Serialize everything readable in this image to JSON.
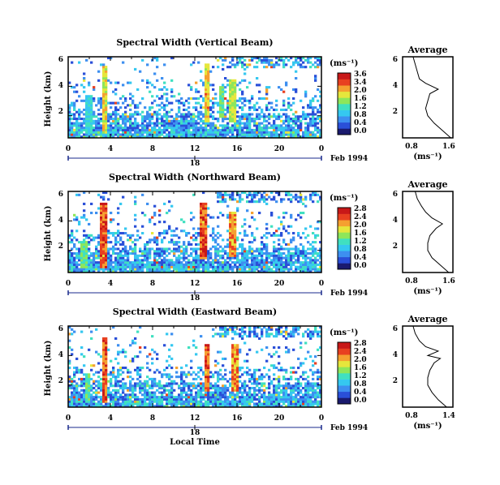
{
  "panels": [
    {
      "title": "Spectral Width (Vertical Beam)",
      "ylabel": "Height (km)",
      "yticks": [
        "6",
        "4",
        "2"
      ],
      "xticks": [
        "0",
        "4",
        "8",
        "12",
        "16",
        "20",
        "0"
      ],
      "date_tick": "18",
      "date_label": "Feb 1994",
      "colorbar_unit": "(ms⁻¹)",
      "colorbar_ticks": [
        "3.6",
        "3.4",
        "2.0",
        "1.6",
        "1.2",
        "0.8",
        "0.4",
        "0.0"
      ],
      "avg_title": "Average",
      "avg_xticks": [
        "0.8",
        "1.6"
      ],
      "avg_xlabel": "(ms⁻¹)",
      "avg_yticks": [
        "6",
        "4",
        "2"
      ]
    },
    {
      "title": "Spectral Width (Northward Beam)",
      "ylabel": "Height (km)",
      "yticks": [
        "6",
        "4",
        "2"
      ],
      "xticks": [
        "0",
        "4",
        "8",
        "12",
        "16",
        "20",
        "0"
      ],
      "date_tick": "18",
      "date_label": "Feb 1994",
      "colorbar_unit": "(ms⁻¹)",
      "colorbar_ticks": [
        "2.8",
        "2.4",
        "2.0",
        "1.6",
        "1.2",
        "0.8",
        "0.4",
        "0.0"
      ],
      "avg_title": "Average",
      "avg_xticks": [
        "0.8",
        "1.6"
      ],
      "avg_xlabel": "(ms⁻¹)",
      "avg_yticks": [
        "6",
        "4",
        "2"
      ]
    },
    {
      "title": "Spectral Width (Eastward Beam)",
      "ylabel": "Height (km)",
      "yticks": [
        "6",
        "4",
        "2"
      ],
      "xticks": [
        "0",
        "4",
        "8",
        "12",
        "16",
        "20",
        "0"
      ],
      "date_tick": "18",
      "date_label": "Feb 1994",
      "colorbar_unit": "(ms⁻¹)",
      "colorbar_ticks": [
        "2.8",
        "2.4",
        "2.0",
        "1.6",
        "1.2",
        "0.8",
        "0.4",
        "0.0"
      ],
      "avg_title": "Average",
      "avg_xticks": [
        "0.8",
        "1.4"
      ],
      "avg_xlabel": "(ms⁻¹)",
      "avg_yticks": [
        "6",
        "4",
        "2"
      ]
    }
  ],
  "bottom_xlabel": "Local Time",
  "colormap": [
    "#1a1a6e",
    "#2a4fd8",
    "#3d8ff0",
    "#35c8f0",
    "#40e0c0",
    "#8ee65a",
    "#e6e63c",
    "#f5a030",
    "#e84020",
    "#c81818"
  ],
  "chart_data": [
    {
      "type": "heatmap",
      "title": "Spectral Width (Vertical Beam)",
      "xlabel": "Local Time",
      "ylabel": "Height (km)",
      "xlim": [
        0,
        24
      ],
      "ylim": [
        0.5,
        6
      ],
      "clim": [
        0.0,
        3.6
      ],
      "features": [
        {
          "time": 3.5,
          "h_bottom": 0.8,
          "h_top": 5.4,
          "value": 2.6
        },
        {
          "time": 2.0,
          "h_bottom": 0.8,
          "h_top": 3.4,
          "value": 1.6
        },
        {
          "time": 13.2,
          "h_bottom": 1.5,
          "h_top": 5.6,
          "value": 2.8
        },
        {
          "time": 14.5,
          "h_bottom": 1.8,
          "h_top": 4.0,
          "value": 2.0
        },
        {
          "time": 15.6,
          "h_bottom": 1.5,
          "h_top": 4.5,
          "value": 2.4
        }
      ],
      "profile": {
        "height": [
          0.5,
          1.0,
          1.5,
          2.0,
          2.5,
          3.0,
          3.5,
          3.8,
          4.2,
          4.5,
          5.0,
          5.5,
          6.0
        ],
        "value": [
          1.55,
          1.35,
          1.15,
          1.0,
          0.95,
          1.0,
          1.05,
          1.25,
          0.95,
          0.8,
          0.75,
          0.7,
          0.65
        ],
        "xlim": [
          0.4,
          1.6
        ]
      }
    },
    {
      "type": "heatmap",
      "title": "Spectral Width (Northward Beam)",
      "xlabel": "Local Time",
      "ylabel": "Height (km)",
      "xlim": [
        0,
        24
      ],
      "ylim": [
        0.5,
        6
      ],
      "clim": [
        0.0,
        2.8
      ],
      "features": [
        {
          "time": 3.3,
          "h_bottom": 0.8,
          "h_top": 5.2,
          "value": 2.6
        },
        {
          "time": 1.5,
          "h_bottom": 0.8,
          "h_top": 2.6,
          "value": 1.6
        },
        {
          "time": 12.8,
          "h_bottom": 1.4,
          "h_top": 5.2,
          "value": 2.6
        },
        {
          "time": 15.6,
          "h_bottom": 1.5,
          "h_top": 4.6,
          "value": 2.4
        }
      ],
      "profile": {
        "height": [
          0.5,
          1.0,
          1.5,
          2.0,
          2.5,
          3.0,
          3.5,
          3.8,
          4.2,
          4.6,
          5.0,
          5.5,
          6.0
        ],
        "value": [
          1.5,
          1.3,
          1.1,
          1.0,
          1.0,
          1.05,
          1.2,
          1.35,
          1.1,
          0.95,
          0.85,
          0.75,
          0.7
        ],
        "xlim": [
          0.4,
          1.6
        ]
      }
    },
    {
      "type": "heatmap",
      "title": "Spectral Width (Eastward Beam)",
      "xlabel": "Local Time",
      "ylabel": "Height (km)",
      "xlim": [
        0,
        24
      ],
      "ylim": [
        0.5,
        6
      ],
      "clim": [
        0.0,
        2.8
      ],
      "features": [
        {
          "time": 3.5,
          "h_bottom": 0.8,
          "h_top": 5.3,
          "value": 2.6
        },
        {
          "time": 1.8,
          "h_bottom": 0.8,
          "h_top": 2.8,
          "value": 1.6
        },
        {
          "time": 13.2,
          "h_bottom": 1.5,
          "h_top": 4.8,
          "value": 2.6
        },
        {
          "time": 15.8,
          "h_bottom": 1.5,
          "h_top": 4.8,
          "value": 2.4
        }
      ],
      "profile": {
        "height": [
          0.5,
          1.0,
          1.5,
          2.0,
          2.5,
          3.0,
          3.5,
          3.8,
          4.0,
          4.3,
          4.6,
          5.0,
          5.5,
          6.0
        ],
        "value": [
          1.45,
          1.25,
          1.1,
          1.0,
          1.0,
          1.05,
          1.15,
          1.3,
          1.0,
          1.25,
          0.95,
          0.8,
          0.7,
          0.65
        ],
        "xlim": [
          0.4,
          1.6
        ]
      }
    }
  ]
}
